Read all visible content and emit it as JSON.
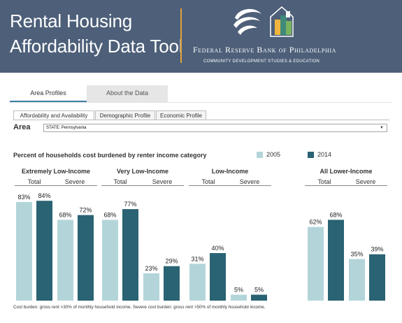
{
  "header": {
    "title_line1": "Rental Housing",
    "title_line2": "Affordability Data Tool",
    "fed_name": "Federal Reserve Bank of Philadelphia",
    "fed_subtitle": "COMMUNITY DEVELOPMENT STUDIES & EDUCATION",
    "background_color": "#4d5f79",
    "divider_color": "#e2a23a"
  },
  "main_tabs": [
    {
      "label": "Area Profiles",
      "active": true
    },
    {
      "label": "About the Data",
      "active": false
    }
  ],
  "sub_tabs": [
    {
      "label": "Affordability and Availability",
      "active": true
    },
    {
      "label": "Demographic Profile",
      "active": false
    },
    {
      "label": "Economic Profile",
      "active": false
    }
  ],
  "area": {
    "label": "Area",
    "selected": "STATE: Pennsylvania"
  },
  "chart_data": {
    "type": "bar",
    "title": "Percent of households cost burdened by renter income category",
    "series": [
      {
        "name": "2005",
        "color": "#b3d5da"
      },
      {
        "name": "2014",
        "color": "#2a6373"
      }
    ],
    "groups": [
      {
        "label": "Extremely Low-Income",
        "subcategories": [
          "Total",
          "Severe"
        ],
        "values_2005": [
          83,
          68
        ],
        "values_2014": [
          84,
          72
        ]
      },
      {
        "label": "Very Low-Income",
        "subcategories": [
          "Total",
          "Severe"
        ],
        "values_2005": [
          68,
          23
        ],
        "values_2014": [
          77,
          29
        ]
      },
      {
        "label": "Low-Income",
        "subcategories": [
          "Total",
          "Severe"
        ],
        "values_2005": [
          31,
          5
        ],
        "values_2014": [
          40,
          5
        ]
      },
      {
        "label": "All Lower-Income",
        "subcategories": [
          "Total",
          "Severe"
        ],
        "values_2005": [
          62,
          35
        ],
        "values_2014": [
          68,
          39
        ]
      }
    ],
    "value_suffix": "%",
    "ylim": [
      0,
      100
    ],
    "grid": false,
    "legend_position": "top-right"
  },
  "footnote": "Cost burden: gross rent >30% of monthly household income. Severe cost burden: gross rent >50% of monthly household income."
}
